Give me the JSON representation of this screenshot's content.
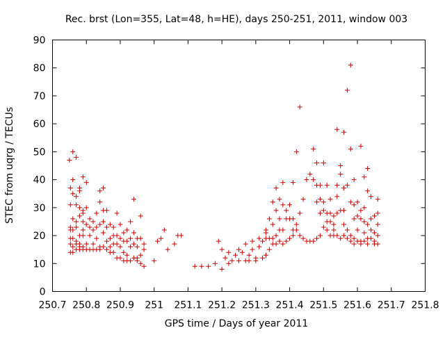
{
  "chart_data": {
    "type": "scatter",
    "title": "Rec. brst (Lon=355, Lat=48, h=HE), days 250-251, 2011, window 003",
    "xlabel": "GPS time / Days of year 2011",
    "ylabel": "STEC from uqrg / TECUs",
    "xlim": [
      250.7,
      251.8
    ],
    "ylim": [
      0,
      90
    ],
    "xticks": [
      "250.7",
      "250.8",
      "250.9",
      "251",
      "251.1",
      "251.2",
      "251.3",
      "251.4",
      "251.5",
      "251.6",
      "251.7",
      "251.8"
    ],
    "yticks": [
      "0",
      "10",
      "20",
      "30",
      "40",
      "50",
      "60",
      "70",
      "80",
      "90"
    ],
    "grid": false,
    "marker": "plus",
    "color": "#cc0000",
    "points": [
      [
        250.75,
        47
      ],
      [
        250.753,
        37
      ],
      [
        250.753,
        31
      ],
      [
        250.753,
        23
      ],
      [
        250.753,
        22
      ],
      [
        250.753,
        19
      ],
      [
        250.753,
        17
      ],
      [
        250.753,
        14
      ],
      [
        250.76,
        50
      ],
      [
        250.76,
        40
      ],
      [
        250.76,
        35
      ],
      [
        250.76,
        26
      ],
      [
        250.76,
        22
      ],
      [
        250.76,
        19
      ],
      [
        250.76,
        16
      ],
      [
        250.76,
        14
      ],
      [
        250.77,
        48
      ],
      [
        250.77,
        34
      ],
      [
        250.77,
        31
      ],
      [
        250.77,
        25
      ],
      [
        250.77,
        23
      ],
      [
        250.77,
        18
      ],
      [
        250.77,
        17
      ],
      [
        250.77,
        15
      ],
      [
        250.78,
        37
      ],
      [
        250.78,
        36
      ],
      [
        250.78,
        30
      ],
      [
        250.78,
        27
      ],
      [
        250.78,
        20
      ],
      [
        250.78,
        17
      ],
      [
        250.78,
        16
      ],
      [
        250.78,
        15
      ],
      [
        250.79,
        41
      ],
      [
        250.79,
        29
      ],
      [
        250.79,
        28
      ],
      [
        250.79,
        25
      ],
      [
        250.79,
        22
      ],
      [
        250.79,
        20
      ],
      [
        250.79,
        16
      ],
      [
        250.79,
        15
      ],
      [
        250.8,
        39
      ],
      [
        250.8,
        30
      ],
      [
        250.8,
        24
      ],
      [
        250.8,
        17
      ],
      [
        250.8,
        15
      ],
      [
        250.81,
        26
      ],
      [
        250.81,
        23
      ],
      [
        250.81,
        20
      ],
      [
        250.81,
        15
      ],
      [
        250.82,
        25
      ],
      [
        250.82,
        22
      ],
      [
        250.82,
        17
      ],
      [
        250.82,
        15
      ],
      [
        250.83,
        28
      ],
      [
        250.83,
        23
      ],
      [
        250.83,
        19
      ],
      [
        250.83,
        15
      ],
      [
        250.84,
        36
      ],
      [
        250.84,
        32
      ],
      [
        250.84,
        24
      ],
      [
        250.84,
        16
      ],
      [
        250.84,
        15
      ],
      [
        250.85,
        37
      ],
      [
        250.85,
        29
      ],
      [
        250.85,
        25
      ],
      [
        250.85,
        21
      ],
      [
        250.85,
        16
      ],
      [
        250.86,
        29
      ],
      [
        250.86,
        23
      ],
      [
        250.86,
        18
      ],
      [
        250.86,
        15
      ],
      [
        250.87,
        24
      ],
      [
        250.87,
        19
      ],
      [
        250.87,
        16
      ],
      [
        250.87,
        14
      ],
      [
        250.88,
        23
      ],
      [
        250.88,
        20
      ],
      [
        250.88,
        17
      ],
      [
        250.88,
        14
      ],
      [
        250.89,
        28
      ],
      [
        250.89,
        20
      ],
      [
        250.89,
        17
      ],
      [
        250.89,
        12
      ],
      [
        250.9,
        24
      ],
      [
        250.9,
        19
      ],
      [
        250.9,
        16
      ],
      [
        250.9,
        12
      ],
      [
        250.91,
        21
      ],
      [
        250.91,
        18
      ],
      [
        250.91,
        14
      ],
      [
        250.91,
        11
      ],
      [
        250.92,
        22
      ],
      [
        250.92,
        18
      ],
      [
        250.92,
        13
      ],
      [
        250.92,
        11
      ],
      [
        250.93,
        25
      ],
      [
        250.93,
        19
      ],
      [
        250.93,
        16
      ],
      [
        250.93,
        11
      ],
      [
        250.94,
        33
      ],
      [
        250.94,
        21
      ],
      [
        250.94,
        17
      ],
      [
        250.94,
        12
      ],
      [
        250.95,
        19
      ],
      [
        250.95,
        16
      ],
      [
        250.95,
        12
      ],
      [
        250.95,
        11
      ],
      [
        250.96,
        27
      ],
      [
        250.96,
        19
      ],
      [
        250.96,
        13
      ],
      [
        250.96,
        10
      ],
      [
        250.97,
        17
      ],
      [
        250.97,
        15
      ],
      [
        250.97,
        9
      ],
      [
        251.0,
        11
      ],
      [
        251.01,
        18
      ],
      [
        251.02,
        19
      ],
      [
        251.03,
        22
      ],
      [
        251.04,
        15
      ],
      [
        251.06,
        17
      ],
      [
        251.07,
        20
      ],
      [
        251.08,
        20
      ],
      [
        251.12,
        9
      ],
      [
        251.14,
        9
      ],
      [
        251.16,
        9
      ],
      [
        251.18,
        10
      ],
      [
        251.19,
        18
      ],
      [
        251.2,
        15
      ],
      [
        251.2,
        8
      ],
      [
        251.21,
        12
      ],
      [
        251.22,
        14
      ],
      [
        251.22,
        10
      ],
      [
        251.23,
        11
      ],
      [
        251.24,
        13
      ],
      [
        251.25,
        15
      ],
      [
        251.25,
        11
      ],
      [
        251.26,
        14
      ],
      [
        251.27,
        17
      ],
      [
        251.27,
        11
      ],
      [
        251.28,
        13
      ],
      [
        251.28,
        11
      ],
      [
        251.29,
        18
      ],
      [
        251.29,
        15
      ],
      [
        251.3,
        12
      ],
      [
        251.3,
        11
      ],
      [
        251.31,
        19
      ],
      [
        251.31,
        16
      ],
      [
        251.32,
        18
      ],
      [
        251.32,
        12
      ],
      [
        251.33,
        22
      ],
      [
        251.33,
        21
      ],
      [
        251.33,
        19
      ],
      [
        251.33,
        13
      ],
      [
        251.34,
        26
      ],
      [
        251.34,
        19
      ],
      [
        251.34,
        15
      ],
      [
        251.35,
        32
      ],
      [
        251.35,
        24
      ],
      [
        251.35,
        19
      ],
      [
        251.35,
        17
      ],
      [
        251.36,
        37
      ],
      [
        251.36,
        29
      ],
      [
        251.36,
        20
      ],
      [
        251.36,
        17
      ],
      [
        251.37,
        33
      ],
      [
        251.37,
        26
      ],
      [
        251.37,
        22
      ],
      [
        251.37,
        18
      ],
      [
        251.38,
        39
      ],
      [
        251.38,
        31
      ],
      [
        251.38,
        22
      ],
      [
        251.38,
        17
      ],
      [
        251.39,
        29
      ],
      [
        251.39,
        26
      ],
      [
        251.39,
        18
      ],
      [
        251.4,
        31
      ],
      [
        251.4,
        26
      ],
      [
        251.4,
        19
      ],
      [
        251.41,
        39
      ],
      [
        251.41,
        26
      ],
      [
        251.41,
        22
      ],
      [
        251.41,
        20
      ],
      [
        251.42,
        50
      ],
      [
        251.42,
        24
      ],
      [
        251.42,
        22
      ],
      [
        251.43,
        66
      ],
      [
        251.43,
        28
      ],
      [
        251.43,
        20
      ],
      [
        251.44,
        33
      ],
      [
        251.44,
        19
      ],
      [
        251.45,
        40
      ],
      [
        251.45,
        18
      ],
      [
        251.46,
        42
      ],
      [
        251.46,
        18
      ],
      [
        251.47,
        51
      ],
      [
        251.47,
        40
      ],
      [
        251.47,
        18
      ],
      [
        251.48,
        46
      ],
      [
        251.48,
        38
      ],
      [
        251.48,
        32
      ],
      [
        251.48,
        19
      ],
      [
        251.49,
        38
      ],
      [
        251.49,
        33
      ],
      [
        251.49,
        28
      ],
      [
        251.49,
        20
      ],
      [
        251.5,
        46
      ],
      [
        251.5,
        32
      ],
      [
        251.5,
        29
      ],
      [
        251.5,
        23
      ],
      [
        251.51,
        38
      ],
      [
        251.51,
        28
      ],
      [
        251.51,
        25
      ],
      [
        251.51,
        22
      ],
      [
        251.52,
        33
      ],
      [
        251.52,
        28
      ],
      [
        251.52,
        25
      ],
      [
        251.52,
        20
      ],
      [
        251.53,
        27
      ],
      [
        251.53,
        24
      ],
      [
        251.53,
        22
      ],
      [
        251.53,
        20
      ],
      [
        251.54,
        58
      ],
      [
        251.54,
        38
      ],
      [
        251.54,
        34
      ],
      [
        251.54,
        28
      ],
      [
        251.54,
        20
      ],
      [
        251.55,
        45
      ],
      [
        251.55,
        42
      ],
      [
        251.55,
        29
      ],
      [
        251.55,
        19
      ],
      [
        251.56,
        57
      ],
      [
        251.56,
        37
      ],
      [
        251.56,
        29
      ],
      [
        251.56,
        24
      ],
      [
        251.56,
        20
      ],
      [
        251.57,
        72
      ],
      [
        251.57,
        38
      ],
      [
        251.57,
        22
      ],
      [
        251.57,
        19
      ],
      [
        251.58,
        81
      ],
      [
        251.58,
        51
      ],
      [
        251.58,
        32
      ],
      [
        251.58,
        20
      ],
      [
        251.58,
        18
      ],
      [
        251.59,
        40
      ],
      [
        251.59,
        31
      ],
      [
        251.59,
        26
      ],
      [
        251.59,
        19
      ],
      [
        251.59,
        17
      ],
      [
        251.6,
        32
      ],
      [
        251.6,
        27
      ],
      [
        251.6,
        22
      ],
      [
        251.6,
        18
      ],
      [
        251.61,
        52
      ],
      [
        251.61,
        29
      ],
      [
        251.61,
        26
      ],
      [
        251.61,
        18
      ],
      [
        251.61,
        17
      ],
      [
        251.62,
        41
      ],
      [
        251.62,
        30
      ],
      [
        251.62,
        25
      ],
      [
        251.62,
        21
      ],
      [
        251.62,
        18
      ],
      [
        251.63,
        44
      ],
      [
        251.63,
        36
      ],
      [
        251.63,
        24
      ],
      [
        251.63,
        19
      ],
      [
        251.63,
        17
      ],
      [
        251.64,
        34
      ],
      [
        251.64,
        26
      ],
      [
        251.64,
        22
      ],
      [
        251.64,
        19
      ],
      [
        251.65,
        27
      ],
      [
        251.65,
        21
      ],
      [
        251.65,
        18
      ],
      [
        251.65,
        17
      ],
      [
        251.66,
        33
      ],
      [
        251.66,
        28
      ],
      [
        251.66,
        24
      ],
      [
        251.66,
        20
      ],
      [
        251.66,
        17
      ]
    ]
  }
}
